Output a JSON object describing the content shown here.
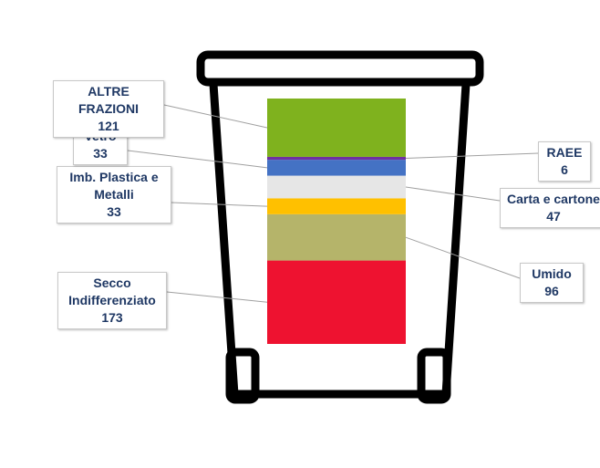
{
  "chart_data": {
    "type": "stacked-bar",
    "series": [
      {
        "name": "Secco Indifferenziato",
        "color": "#ee1230",
        "values": [
          173
        ]
      },
      {
        "name": "Umido",
        "color": "#b5b46a",
        "values": [
          96
        ]
      },
      {
        "name": "Imb. Plastica e Metalli",
        "color": "#ffc000",
        "values": [
          33
        ]
      },
      {
        "name": "Carta e cartone",
        "color": "#e6e6e6",
        "values": [
          47
        ]
      },
      {
        "name": "Vetro",
        "color": "#4472c4",
        "values": [
          33
        ]
      },
      {
        "name": "RAEE",
        "color": "#7030a0",
        "values": [
          6
        ]
      },
      {
        "name": "ALTRE FRAZIONI",
        "color": "#7fb21e",
        "values": [
          121
        ]
      }
    ]
  }
}
